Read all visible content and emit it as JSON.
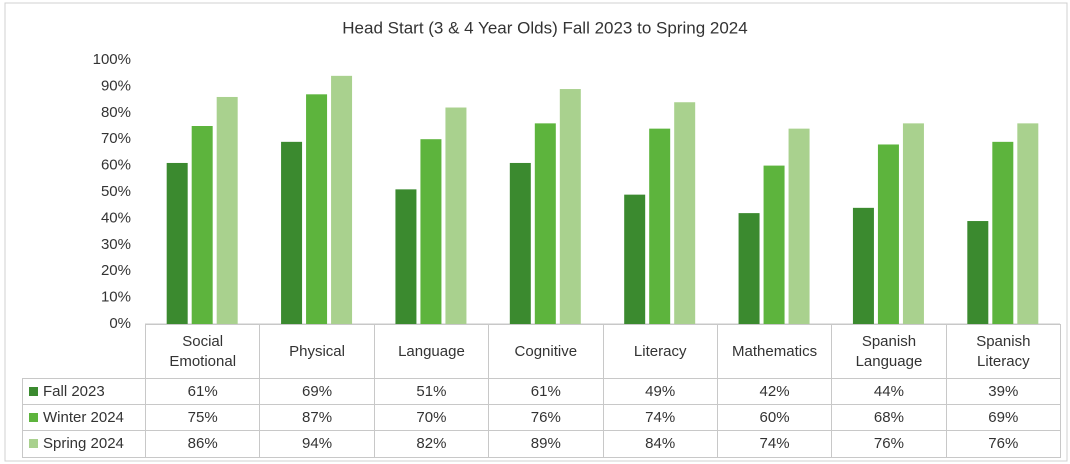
{
  "chart_data": {
    "type": "bar",
    "title": "Head Start (3 & 4 Year Olds) Fall 2023 to Spring 2024",
    "categories": [
      "Social Emotional",
      "Physical",
      "Language",
      "Cognitive",
      "Literacy",
      "Mathematics",
      "Spanish Language",
      "Spanish Literacy"
    ],
    "series": [
      {
        "name": "Fall 2023",
        "color": "#3b8a2f",
        "values": [
          61,
          69,
          51,
          61,
          49,
          42,
          44,
          39
        ],
        "value_labels": [
          "61%",
          "69%",
          "51%",
          "61%",
          "49%",
          "42%",
          "44%",
          "39%"
        ]
      },
      {
        "name": "Winter 2024",
        "color": "#5db43d",
        "values": [
          75,
          87,
          70,
          76,
          74,
          60,
          68,
          69
        ],
        "value_labels": [
          "75%",
          "87%",
          "70%",
          "76%",
          "74%",
          "60%",
          "68%",
          "69%"
        ]
      },
      {
        "name": "Spring 2024",
        "color": "#a9d18e",
        "values": [
          86,
          94,
          82,
          89,
          84,
          74,
          76,
          76
        ],
        "value_labels": [
          "86%",
          "94%",
          "82%",
          "89%",
          "84%",
          "74%",
          "76%",
          "76%"
        ]
      }
    ],
    "ylim": [
      0,
      100
    ],
    "yticks": [
      {
        "value": 0,
        "label": "0%"
      },
      {
        "value": 10,
        "label": "10%"
      },
      {
        "value": 20,
        "label": "20%"
      },
      {
        "value": 30,
        "label": "30%"
      },
      {
        "value": 40,
        "label": "40%"
      },
      {
        "value": 50,
        "label": "50%"
      },
      {
        "value": 60,
        "label": "60%"
      },
      {
        "value": 70,
        "label": "70%"
      },
      {
        "value": 80,
        "label": "80%"
      },
      {
        "value": 90,
        "label": "90%"
      },
      {
        "value": 100,
        "label": "100%"
      }
    ],
    "grid": false
  }
}
